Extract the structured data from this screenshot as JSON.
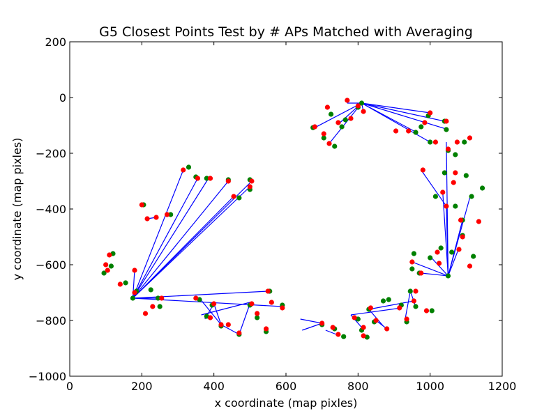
{
  "chart_data": {
    "type": "scatter",
    "title": "G5 Closest Points Test by # APs Matched with Averaging",
    "xlabel": "x coordinate (map pixles)",
    "ylabel": "y coordinate (map pixles)",
    "xlim": [
      0,
      1200
    ],
    "ylim": [
      -1000,
      200
    ],
    "xticks": [
      0,
      200,
      400,
      600,
      800,
      1000,
      1200
    ],
    "yticks": [
      200,
      0,
      -200,
      -400,
      -600,
      -800,
      -1000
    ],
    "xtick_labels": [
      "0",
      "200",
      "400",
      "600",
      "800",
      "1000",
      "1200"
    ],
    "ytick_labels": [
      "200",
      "0",
      "−200",
      "−400",
      "−600",
      "−800",
      "−1000"
    ],
    "grid": false,
    "colors": {
      "actual": "#ff0000",
      "estimated": "#008000",
      "line": "#0000ff"
    },
    "line_segments": [
      [
        [
          175,
          -720
        ],
        [
          315,
          -260
        ]
      ],
      [
        [
          175,
          -720
        ],
        [
          355,
          -290
        ]
      ],
      [
        [
          175,
          -720
        ],
        [
          385,
          -290
        ]
      ],
      [
        [
          175,
          -720
        ],
        [
          440,
          -300
        ]
      ],
      [
        [
          175,
          -720
        ],
        [
          455,
          -355
        ]
      ],
      [
        [
          175,
          -720
        ],
        [
          500,
          -320
        ]
      ],
      [
        [
          175,
          -720
        ],
        [
          505,
          -300
        ]
      ],
      [
        [
          175,
          -720
        ],
        [
          550,
          -695
        ]
      ],
      [
        [
          175,
          -720
        ],
        [
          590,
          -750
        ]
      ],
      [
        [
          175,
          -720
        ],
        [
          180,
          -620
        ]
      ],
      [
        [
          175,
          -720
        ],
        [
          250,
          -720
        ]
      ],
      [
        [
          215,
          -435
        ],
        [
          240,
          -430
        ]
      ],
      [
        [
          360,
          -720
        ],
        [
          420,
          -815
        ]
      ],
      [
        [
          365,
          -780
        ],
        [
          500,
          -735
        ]
      ],
      [
        [
          375,
          -795
        ],
        [
          400,
          -740
        ]
      ],
      [
        [
          400,
          -740
        ],
        [
          420,
          -815
        ]
      ],
      [
        [
          420,
          -815
        ],
        [
          470,
          -850
        ]
      ],
      [
        [
          470,
          -850
        ],
        [
          500,
          -740
        ]
      ],
      [
        [
          640,
          -795
        ],
        [
          700,
          -810
        ]
      ],
      [
        [
          645,
          -835
        ],
        [
          700,
          -810
        ]
      ],
      [
        [
          710,
          -835
        ],
        [
          740,
          -850
        ]
      ],
      [
        [
          810,
          -20
        ],
        [
          770,
          -20
        ]
      ],
      [
        [
          810,
          -20
        ],
        [
          815,
          -50
        ]
      ],
      [
        [
          810,
          -20
        ],
        [
          680,
          -108
        ]
      ],
      [
        [
          810,
          -20
        ],
        [
          720,
          -165
        ]
      ],
      [
        [
          810,
          -20
        ],
        [
          1000,
          -55
        ]
      ],
      [
        [
          810,
          -20
        ],
        [
          1040,
          -85
        ]
      ],
      [
        [
          810,
          -20
        ],
        [
          1050,
          -115
        ]
      ],
      [
        [
          810,
          -20
        ],
        [
          955,
          -120
        ]
      ],
      [
        [
          810,
          -20
        ],
        [
          1000,
          -160
        ]
      ],
      [
        [
          810,
          -20
        ],
        [
          750,
          -90
        ]
      ],
      [
        [
          975,
          -260
        ],
        [
          1045,
          -390
        ]
      ],
      [
        [
          1045,
          -390
        ],
        [
          1050,
          -640
        ]
      ],
      [
        [
          1050,
          -640
        ],
        [
          1080,
          -540
        ]
      ],
      [
        [
          1050,
          -640
        ],
        [
          1045,
          -160
        ]
      ],
      [
        [
          1050,
          -640
        ],
        [
          950,
          -590
        ]
      ],
      [
        [
          1050,
          -640
        ],
        [
          1090,
          -440
        ]
      ],
      [
        [
          1050,
          -640
        ],
        [
          975,
          -630
        ]
      ],
      [
        [
          1050,
          -640
        ],
        [
          1000,
          -570
        ]
      ],
      [
        [
          1050,
          -640
        ],
        [
          1110,
          -360
        ]
      ],
      [
        [
          1050,
          -640
        ],
        [
          1035,
          -340
        ]
      ],
      [
        [
          945,
          -695
        ],
        [
          930,
          -800
        ]
      ],
      [
        [
          945,
          -695
        ],
        [
          960,
          -750
        ]
      ],
      [
        [
          955,
          -730
        ],
        [
          830,
          -760
        ]
      ],
      [
        [
          920,
          -755
        ],
        [
          780,
          -780
        ]
      ],
      [
        [
          780,
          -780
        ],
        [
          810,
          -825
        ]
      ],
      [
        [
          850,
          -800
        ],
        [
          880,
          -830
        ]
      ],
      [
        [
          830,
          -760
        ],
        [
          870,
          -820
        ]
      ]
    ],
    "actual_points": [
      [
        100,
        -600
      ],
      [
        110,
        -565
      ],
      [
        105,
        -620
      ],
      [
        140,
        -670
      ],
      [
        180,
        -620
      ],
      [
        180,
        -700
      ],
      [
        200,
        -385
      ],
      [
        215,
        -435
      ],
      [
        240,
        -430
      ],
      [
        230,
        -750
      ],
      [
        210,
        -775
      ],
      [
        255,
        -720
      ],
      [
        270,
        -420
      ],
      [
        315,
        -260
      ],
      [
        355,
        -290
      ],
      [
        390,
        -290
      ],
      [
        440,
        -300
      ],
      [
        455,
        -355
      ],
      [
        500,
        -320
      ],
      [
        505,
        -300
      ],
      [
        350,
        -720
      ],
      [
        390,
        -790
      ],
      [
        400,
        -740
      ],
      [
        420,
        -815
      ],
      [
        440,
        -815
      ],
      [
        470,
        -845
      ],
      [
        505,
        -740
      ],
      [
        520,
        -775
      ],
      [
        550,
        -695
      ],
      [
        545,
        -830
      ],
      [
        560,
        -735
      ],
      [
        590,
        -755
      ],
      [
        680,
        -105
      ],
      [
        705,
        -130
      ],
      [
        715,
        -35
      ],
      [
        720,
        -165
      ],
      [
        745,
        -90
      ],
      [
        770,
        -10
      ],
      [
        780,
        -75
      ],
      [
        800,
        -30
      ],
      [
        815,
        -50
      ],
      [
        700,
        -810
      ],
      [
        730,
        -825
      ],
      [
        745,
        -850
      ],
      [
        790,
        -790
      ],
      [
        815,
        -825
      ],
      [
        815,
        -855
      ],
      [
        835,
        -755
      ],
      [
        850,
        -800
      ],
      [
        880,
        -830
      ],
      [
        915,
        -755
      ],
      [
        935,
        -795
      ],
      [
        950,
        -590
      ],
      [
        955,
        -730
      ],
      [
        960,
        -695
      ],
      [
        975,
        -630
      ],
      [
        990,
        -765
      ],
      [
        985,
        -90
      ],
      [
        1000,
        -55
      ],
      [
        1015,
        -160
      ],
      [
        1020,
        -555
      ],
      [
        1025,
        -595
      ],
      [
        1035,
        -340
      ],
      [
        1045,
        -85
      ],
      [
        1045,
        -390
      ],
      [
        1050,
        -185
      ],
      [
        1065,
        -305
      ],
      [
        1070,
        -270
      ],
      [
        1080,
        -545
      ],
      [
        1085,
        -440
      ],
      [
        1090,
        -500
      ],
      [
        1110,
        -145
      ],
      [
        1110,
        -605
      ],
      [
        1135,
        -445
      ],
      [
        1075,
        -160
      ],
      [
        940,
        -120
      ],
      [
        905,
        -120
      ],
      [
        980,
        -260
      ]
    ],
    "estimated_points": [
      [
        95,
        -630
      ],
      [
        120,
        -560
      ],
      [
        115,
        -605
      ],
      [
        155,
        -665
      ],
      [
        175,
        -720
      ],
      [
        185,
        -695
      ],
      [
        205,
        -385
      ],
      [
        225,
        -690
      ],
      [
        250,
        -750
      ],
      [
        245,
        -720
      ],
      [
        280,
        -420
      ],
      [
        330,
        -250
      ],
      [
        350,
        -285
      ],
      [
        380,
        -290
      ],
      [
        440,
        -295
      ],
      [
        470,
        -360
      ],
      [
        500,
        -330
      ],
      [
        500,
        -295
      ],
      [
        360,
        -725
      ],
      [
        380,
        -785
      ],
      [
        395,
        -745
      ],
      [
        420,
        -820
      ],
      [
        470,
        -850
      ],
      [
        500,
        -745
      ],
      [
        520,
        -790
      ],
      [
        545,
        -840
      ],
      [
        555,
        -695
      ],
      [
        590,
        -745
      ],
      [
        675,
        -108
      ],
      [
        705,
        -145
      ],
      [
        725,
        -60
      ],
      [
        735,
        -175
      ],
      [
        755,
        -105
      ],
      [
        765,
        -80
      ],
      [
        800,
        -35
      ],
      [
        810,
        -20
      ],
      [
        700,
        -815
      ],
      [
        735,
        -830
      ],
      [
        760,
        -858
      ],
      [
        800,
        -795
      ],
      [
        810,
        -835
      ],
      [
        825,
        -860
      ],
      [
        830,
        -760
      ],
      [
        845,
        -805
      ],
      [
        870,
        -730
      ],
      [
        885,
        -725
      ],
      [
        920,
        -745
      ],
      [
        935,
        -805
      ],
      [
        950,
        -615
      ],
      [
        955,
        -560
      ],
      [
        945,
        -695
      ],
      [
        960,
        -750
      ],
      [
        970,
        -630
      ],
      [
        1005,
        -765
      ],
      [
        995,
        -65
      ],
      [
        1000,
        -160
      ],
      [
        960,
        -125
      ],
      [
        975,
        -105
      ],
      [
        1015,
        -355
      ],
      [
        1030,
        -540
      ],
      [
        1040,
        -270
      ],
      [
        1045,
        -115
      ],
      [
        1050,
        -640
      ],
      [
        1050,
        -190
      ],
      [
        1060,
        -555
      ],
      [
        1070,
        -205
      ],
      [
        1070,
        -390
      ],
      [
        1090,
        -440
      ],
      [
        1095,
        -160
      ],
      [
        1100,
        -280
      ],
      [
        1090,
        -495
      ],
      [
        1115,
        -355
      ],
      [
        1120,
        -570
      ],
      [
        1145,
        -325
      ],
      [
        1000,
        -575
      ],
      [
        1040,
        -85
      ]
    ]
  }
}
